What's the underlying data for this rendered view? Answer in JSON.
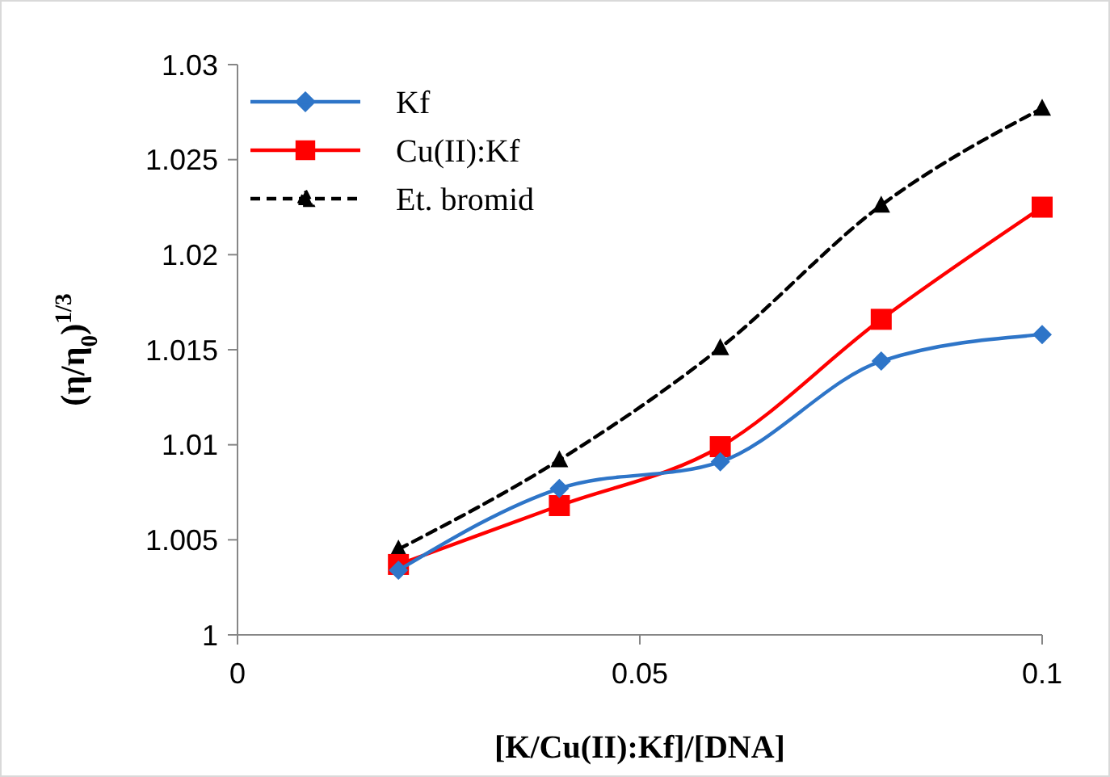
{
  "chart_data": {
    "type": "line",
    "xlabel": "[K/Cu(II):Kf]/[DNA]",
    "ylabel": "(η/η$_{0}$)$^{1/3}$",
    "x": [
      0.02,
      0.04,
      0.06,
      0.08,
      0.1
    ],
    "series": [
      {
        "name": "Kf",
        "color": "#2e75c8",
        "marker": "diamond",
        "line_style": "solid",
        "values": [
          1.0034,
          1.0077,
          1.0091,
          1.0144,
          1.0158
        ]
      },
      {
        "name": "Cu(II):Kf",
        "color": "#ff0000",
        "marker": "square",
        "line_style": "solid",
        "values": [
          1.0037,
          1.0068,
          1.0099,
          1.0166,
          1.0225
        ]
      },
      {
        "name": "Et. bromid",
        "color": "#000000",
        "marker": "triangle",
        "line_style": "dashed",
        "values": [
          1.0045,
          1.0092,
          1.0151,
          1.0226,
          1.0277
        ]
      }
    ],
    "xlim": [
      0,
      0.1
    ],
    "xticks": [
      0,
      0.05,
      0.1
    ],
    "ylim": [
      1,
      1.03
    ],
    "yticks": [
      1,
      1.005,
      1.01,
      1.015,
      1.02,
      1.025,
      1.03
    ],
    "grid": false,
    "legend": "top left"
  }
}
